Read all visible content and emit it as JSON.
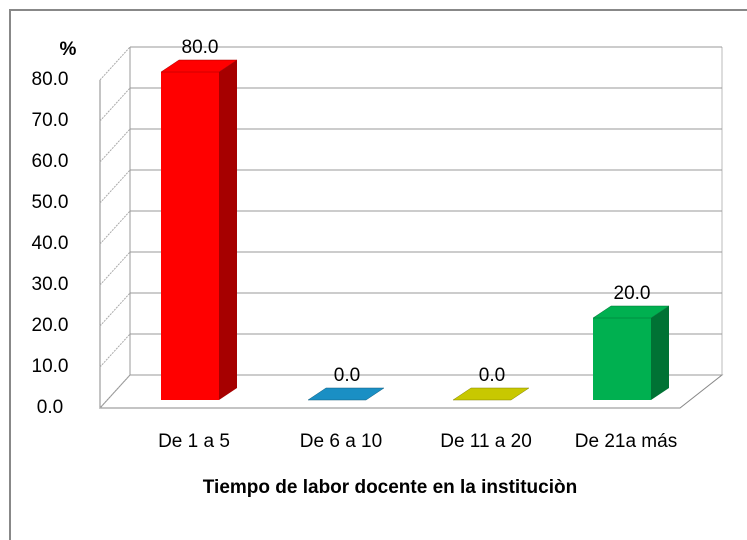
{
  "chart_data": {
    "type": "bar3d",
    "ylabel": "%",
    "xlabel": "Tiempo de labor docente en la instituciòn",
    "categories": [
      "De 1 a 5",
      "De 6 a 10",
      "De 11 a 20",
      "De 21a más"
    ],
    "values": [
      80,
      0,
      0,
      20
    ],
    "value_labels": [
      "80.0",
      "0.0",
      "0.0",
      "20.0"
    ],
    "colors": [
      "#ff0000",
      "#1a8fc4",
      "#c8c800",
      "#00b050"
    ],
    "ylim": [
      0,
      80
    ],
    "yticks": [
      {
        "value": 0,
        "label": "0.0"
      },
      {
        "value": 10,
        "label": "10.0"
      },
      {
        "value": 20,
        "label": "20.0"
      },
      {
        "value": 30,
        "label": "30.0"
      },
      {
        "value": 40,
        "label": "40.0"
      },
      {
        "value": 50,
        "label": "50.0"
      },
      {
        "value": 60,
        "label": "60.0"
      },
      {
        "value": 70,
        "label": "70.0"
      },
      {
        "value": 80,
        "label": "80.0"
      }
    ],
    "grid": true
  }
}
